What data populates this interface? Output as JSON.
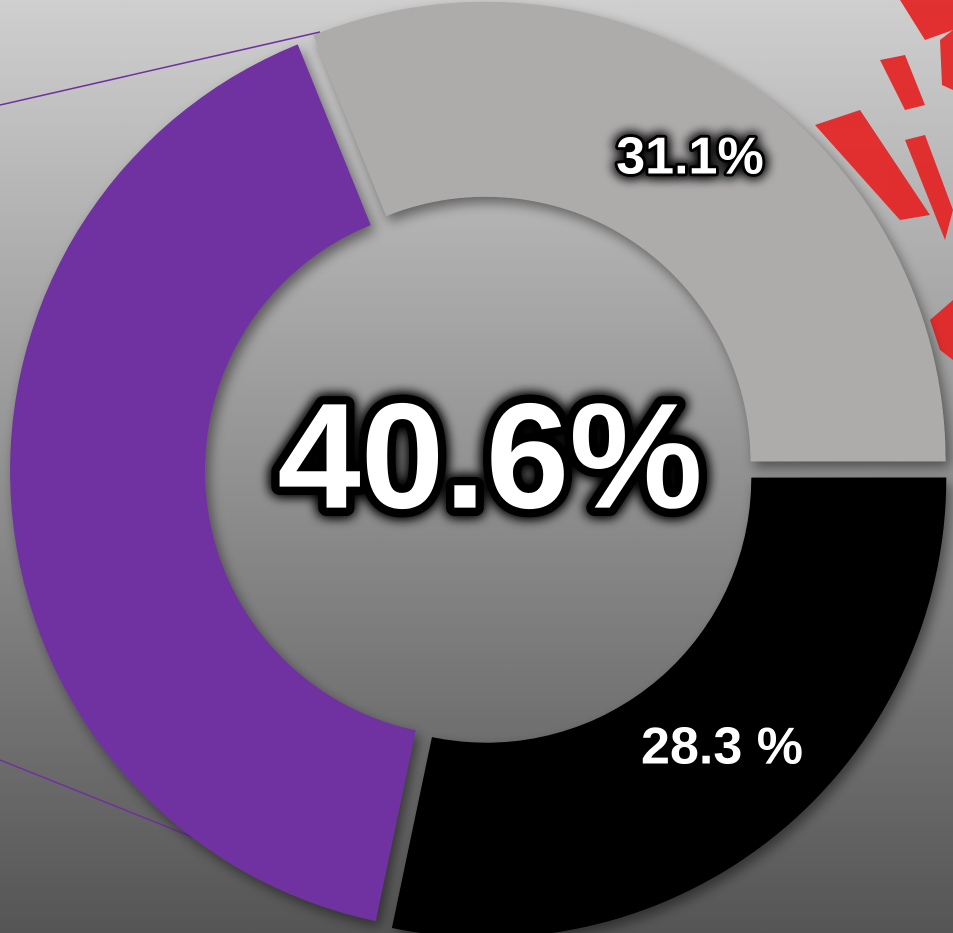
{
  "chart_data": {
    "type": "donut",
    "values": [
      31.1,
      28.3,
      40.6
    ],
    "value_labels": [
      "31.1%",
      "28.3 %",
      "40.6%"
    ],
    "colors": [
      "#aeabab",
      "#000000",
      "#7030a0"
    ]
  }
}
